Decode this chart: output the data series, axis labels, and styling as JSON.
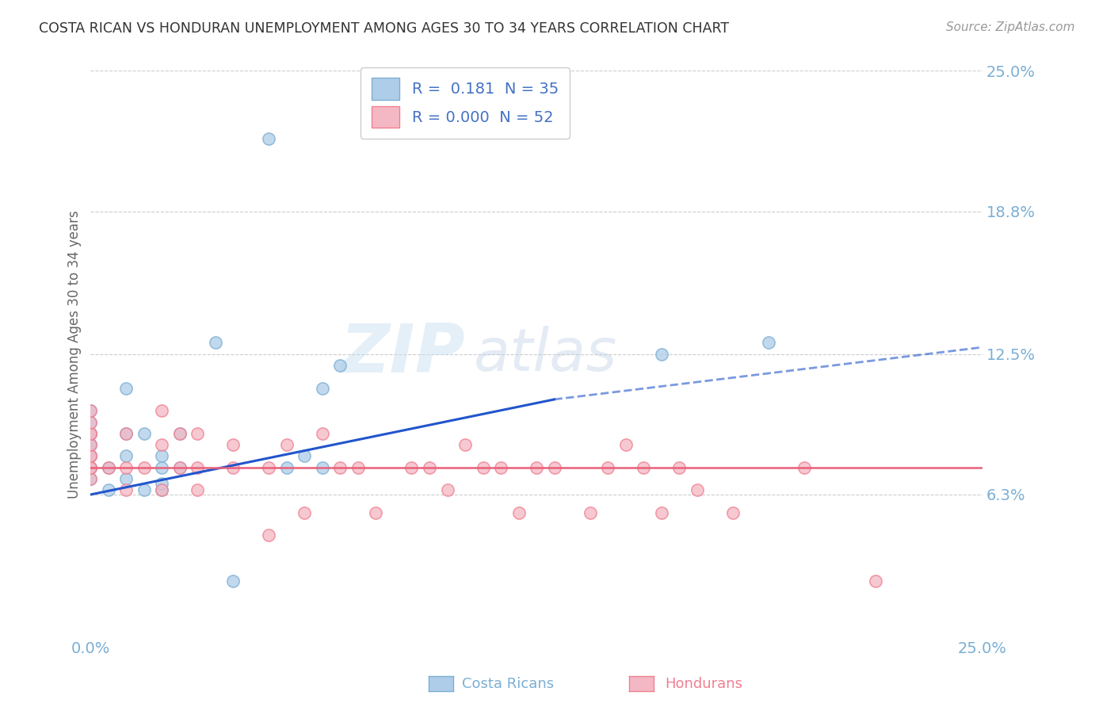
{
  "title": "COSTA RICAN VS HONDURAN UNEMPLOYMENT AMONG AGES 30 TO 34 YEARS CORRELATION CHART",
  "source": "Source: ZipAtlas.com",
  "ylabel": "Unemployment Among Ages 30 to 34 years",
  "xlim": [
    0,
    0.25
  ],
  "ylim": [
    0,
    0.25
  ],
  "yticks": [
    0.063,
    0.125,
    0.188,
    0.25
  ],
  "ytick_labels": [
    "6.3%",
    "12.5%",
    "18.8%",
    "25.0%"
  ],
  "xtick_labels": [
    "0.0%",
    "25.0%"
  ],
  "xticks": [
    0.0,
    0.25
  ],
  "legend_label_cr": "R =  0.181  N = 35",
  "legend_label_hn": "R = 0.000  N = 52",
  "cr_color": "#7bafd4",
  "cr_face_color": "#aecde8",
  "hn_color": "#f08090",
  "hn_face_color": "#f4b8c4",
  "costa_ricans_x": [
    0.0,
    0.0,
    0.0,
    0.0,
    0.0,
    0.0,
    0.0,
    0.0,
    0.0,
    0.0,
    0.0,
    0.005,
    0.005,
    0.01,
    0.01,
    0.01,
    0.01,
    0.015,
    0.015,
    0.02,
    0.02,
    0.02,
    0.02,
    0.025,
    0.025,
    0.035,
    0.04,
    0.05,
    0.055,
    0.06,
    0.065,
    0.065,
    0.07,
    0.16,
    0.19
  ],
  "costa_ricans_y": [
    0.07,
    0.075,
    0.075,
    0.08,
    0.08,
    0.085,
    0.085,
    0.09,
    0.09,
    0.095,
    0.1,
    0.065,
    0.075,
    0.07,
    0.08,
    0.09,
    0.11,
    0.065,
    0.09,
    0.065,
    0.068,
    0.075,
    0.08,
    0.075,
    0.09,
    0.13,
    0.025,
    0.22,
    0.075,
    0.08,
    0.075,
    0.11,
    0.12,
    0.125,
    0.13
  ],
  "hondurans_x": [
    0.0,
    0.0,
    0.0,
    0.0,
    0.0,
    0.0,
    0.0,
    0.0,
    0.0,
    0.0,
    0.005,
    0.01,
    0.01,
    0.01,
    0.015,
    0.02,
    0.02,
    0.02,
    0.025,
    0.025,
    0.03,
    0.03,
    0.03,
    0.04,
    0.04,
    0.05,
    0.05,
    0.055,
    0.06,
    0.065,
    0.07,
    0.075,
    0.08,
    0.09,
    0.095,
    0.1,
    0.105,
    0.11,
    0.115,
    0.12,
    0.125,
    0.13,
    0.14,
    0.145,
    0.15,
    0.155,
    0.16,
    0.165,
    0.17,
    0.18,
    0.2,
    0.22
  ],
  "hondurans_y": [
    0.07,
    0.075,
    0.075,
    0.08,
    0.08,
    0.085,
    0.09,
    0.09,
    0.095,
    0.1,
    0.075,
    0.065,
    0.075,
    0.09,
    0.075,
    0.065,
    0.085,
    0.1,
    0.075,
    0.09,
    0.065,
    0.075,
    0.09,
    0.075,
    0.085,
    0.045,
    0.075,
    0.085,
    0.055,
    0.09,
    0.075,
    0.075,
    0.055,
    0.075,
    0.075,
    0.065,
    0.085,
    0.075,
    0.075,
    0.055,
    0.075,
    0.075,
    0.055,
    0.075,
    0.085,
    0.075,
    0.055,
    0.075,
    0.065,
    0.055,
    0.075,
    0.025
  ],
  "trend_cr_x0": 0.0,
  "trend_cr_x1": 0.13,
  "trend_cr_y0": 0.063,
  "trend_cr_y1": 0.105,
  "trend_cr_ext_x0": 0.13,
  "trend_cr_ext_x1": 0.25,
  "trend_cr_ext_y0": 0.105,
  "trend_cr_ext_y1": 0.128,
  "trend_cr_color": "#2255cc",
  "trend_hn_x0": 0.0,
  "trend_hn_x1": 0.25,
  "trend_hn_y0": 0.075,
  "trend_hn_y1": 0.075,
  "trend_hn_color": "#e8607a",
  "watermark_zip": "ZIP",
  "watermark_atlas": "atlas",
  "background_color": "#ffffff",
  "grid_color": "#cccccc",
  "title_color": "#333333",
  "axis_label_color": "#666666",
  "tick_color": "#7bafd4"
}
